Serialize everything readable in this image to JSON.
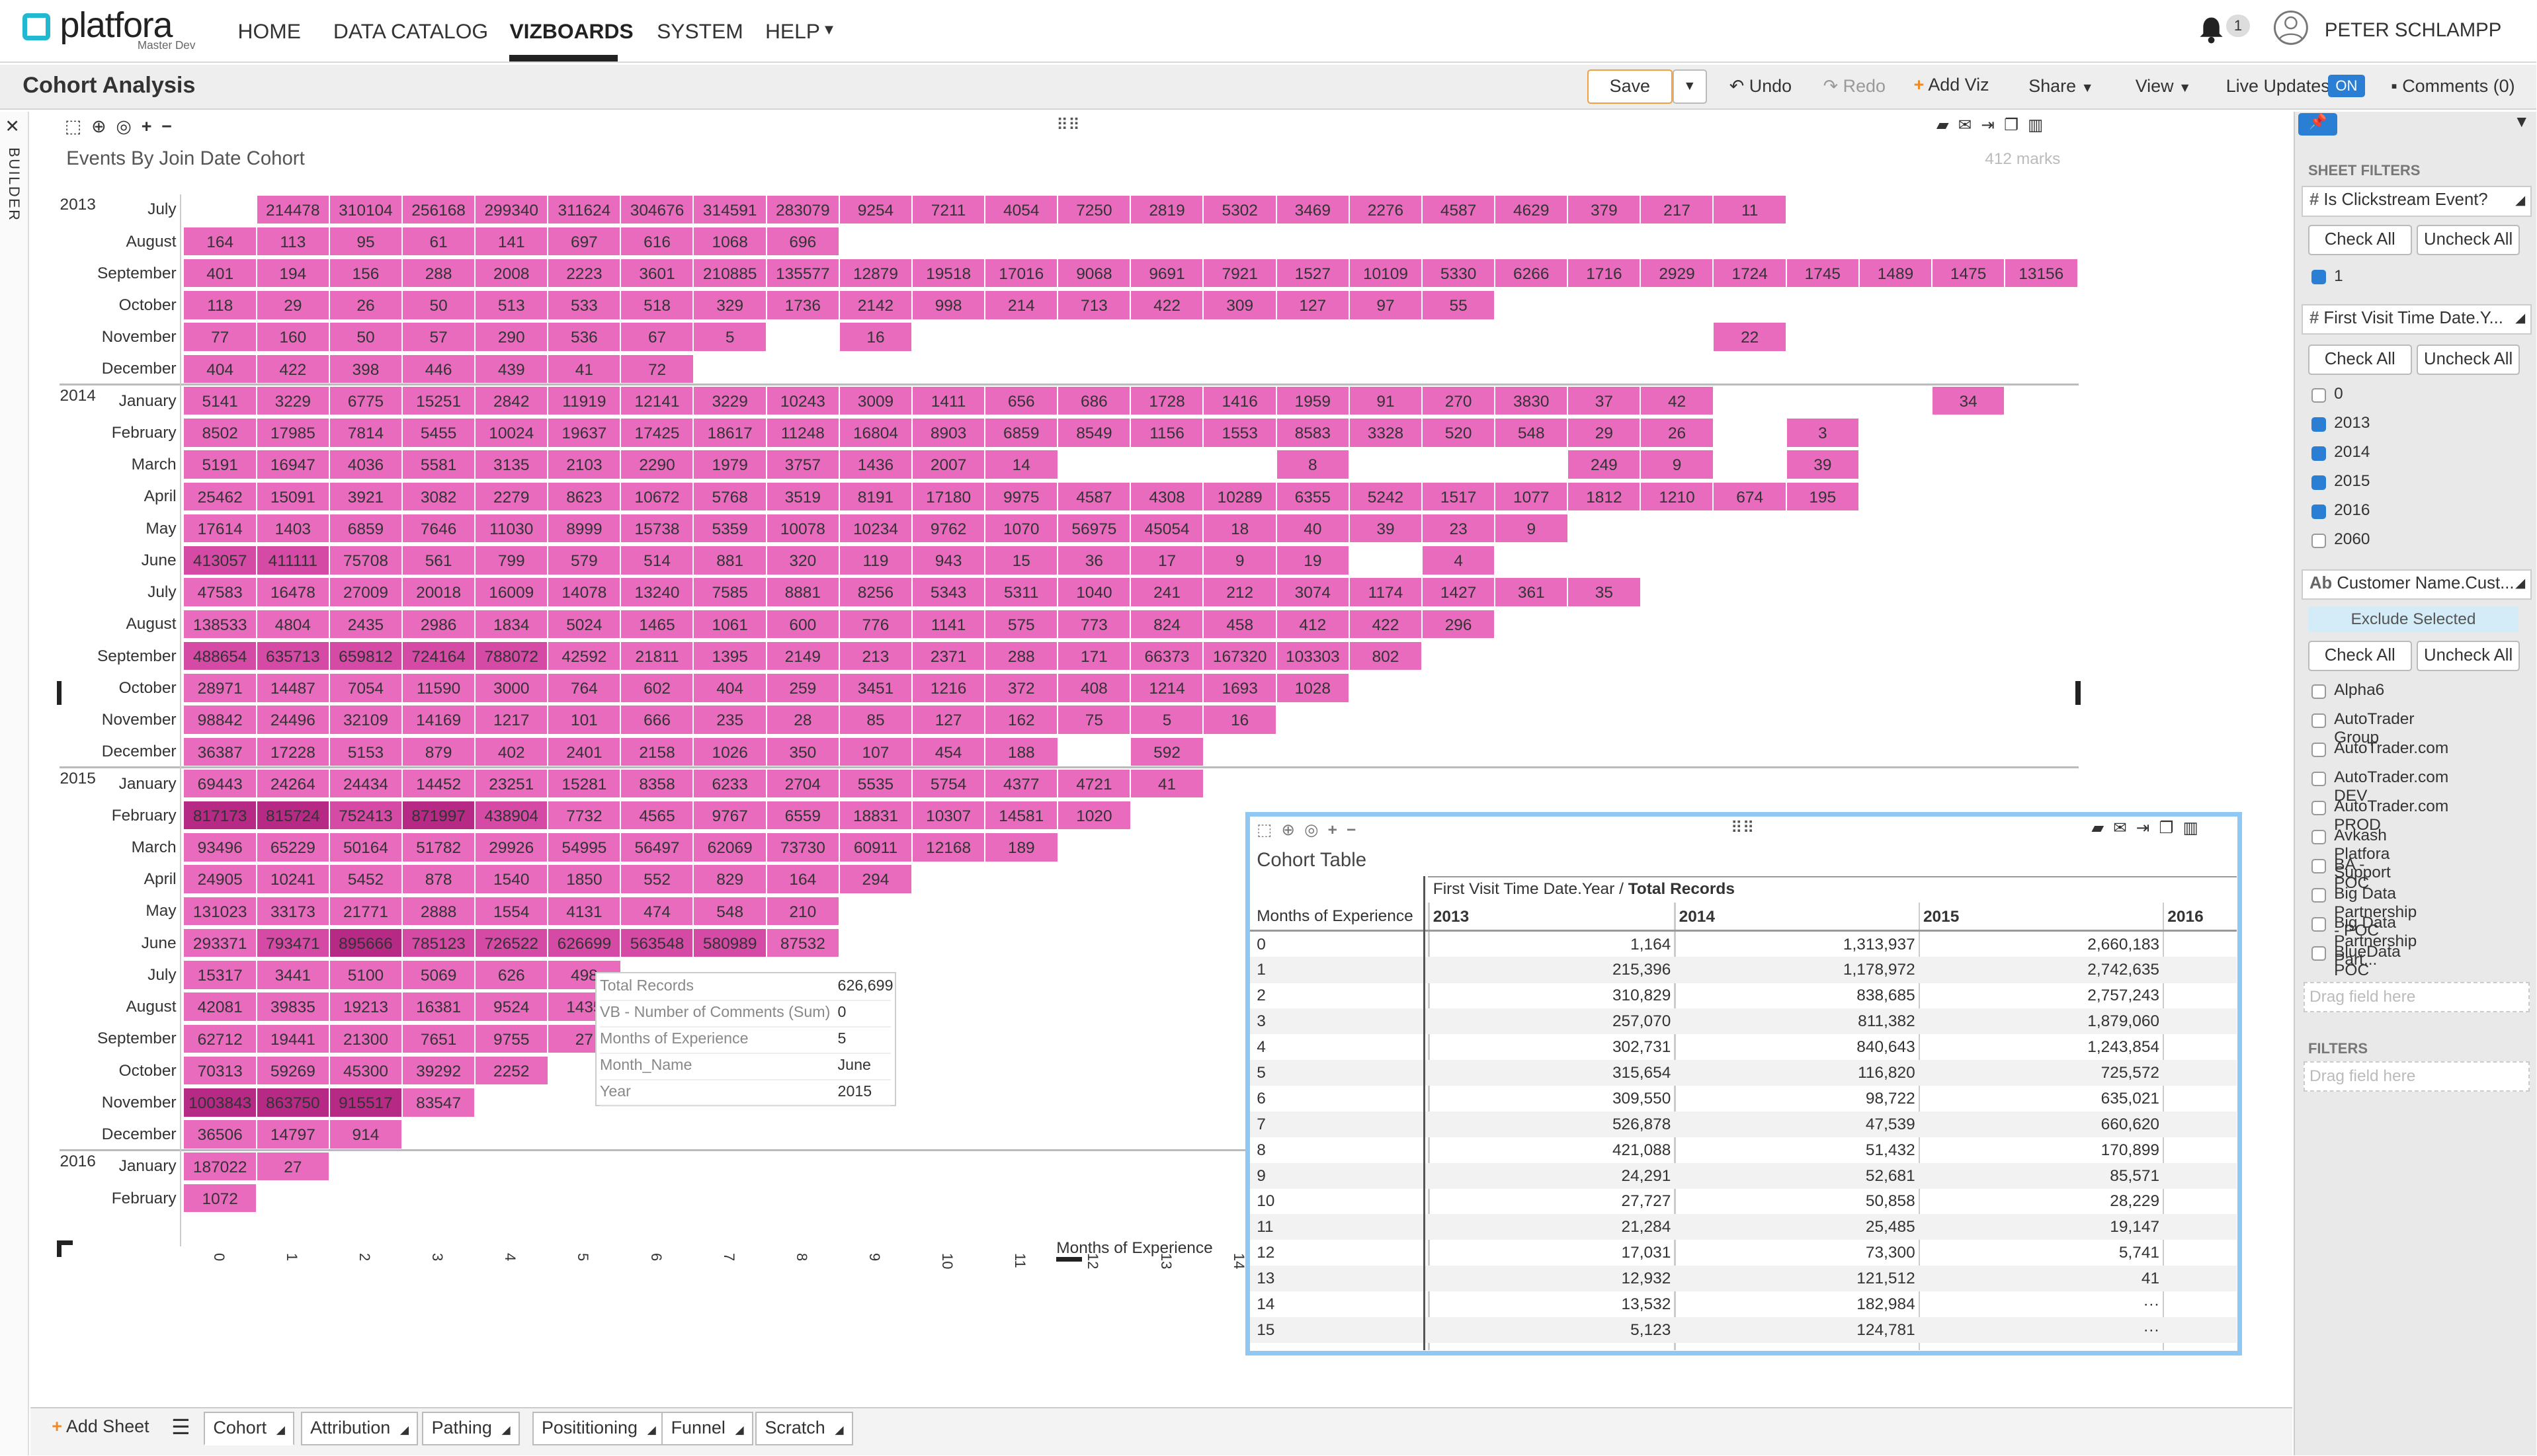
{
  "app": {
    "logo": "platfora",
    "logo_sub": "Master Dev",
    "colors": {
      "brand": "#22b8cf",
      "cell_light": "#e96bbe",
      "cell_mid": "#d44aa5",
      "cell_dark": "#b62a86",
      "selection": "#8fc8f2"
    }
  },
  "nav": {
    "items": [
      "HOME",
      "DATA CATALOG",
      "VIZBOARDS",
      "SYSTEM",
      "HELP"
    ],
    "active": "VIZBOARDS",
    "notifications": "1",
    "user": "PETER SCHLAMPP"
  },
  "header": {
    "title": "Cohort Analysis",
    "save": "Save",
    "undo": "Undo",
    "redo": "Redo",
    "add_viz": "Add Viz",
    "share": "Share",
    "view": "View",
    "live_updates": "Live Updates",
    "live_state": "ON",
    "comments": "Comments (0)"
  },
  "left_rail": {
    "label": "BUILDER"
  },
  "heatmap": {
    "title": "Events By Join Date Cohort",
    "marks": "412 marks",
    "xlabel": "Months of Experience",
    "xticks": [
      "0",
      "1",
      "2",
      "3",
      "4",
      "5",
      "6",
      "7",
      "8",
      "9",
      "10",
      "11",
      "12",
      "13",
      "14"
    ],
    "years": [
      "2013",
      "2014",
      "2015",
      "2016"
    ],
    "rows": [
      {
        "month": "July",
        "start": 1,
        "v": [
          "214478",
          "310104",
          "256168",
          "299340",
          "311624",
          "304676",
          "314591",
          "283079",
          "9254",
          "7211",
          "4054",
          "7250",
          "2819",
          "5302",
          "3469",
          "2276",
          "4587",
          "4629",
          "379",
          "217",
          "11"
        ]
      },
      {
        "month": "August",
        "start": 0,
        "v": [
          "164",
          "113",
          "95",
          "61",
          "141",
          "697",
          "616",
          "1068",
          "696"
        ]
      },
      {
        "month": "September",
        "start": 0,
        "v": [
          "401",
          "194",
          "156",
          "288",
          "2008",
          "2223",
          "3601",
          "210885",
          "135577",
          "12879",
          "19518",
          "17016",
          "9068",
          "9691",
          "7921",
          "1527",
          "10109",
          "5330",
          "6266",
          "1716",
          "2929",
          "1724",
          "1745",
          "1489",
          "1475",
          "13156"
        ]
      },
      {
        "month": "October",
        "start": 0,
        "v": [
          "118",
          "29",
          "26",
          "50",
          "513",
          "533",
          "518",
          "329",
          "1736",
          "2142",
          "998",
          "214",
          "713",
          "422",
          "309",
          "127",
          "97",
          "55"
        ]
      },
      {
        "month": "November",
        "start": 0,
        "v": [
          "77",
          "160",
          "50",
          "57",
          "290",
          "536",
          "67",
          "5",
          "",
          "16",
          "",
          "",
          "",
          "",
          "",
          "",
          "",
          "",
          "",
          "",
          "",
          "22"
        ]
      },
      {
        "month": "December",
        "start": 0,
        "v": [
          "404",
          "422",
          "398",
          "446",
          "439",
          "41",
          "72"
        ]
      },
      {
        "month": "January",
        "start": 0,
        "v": [
          "5141",
          "3229",
          "6775",
          "15251",
          "2842",
          "11919",
          "12141",
          "3229",
          "10243",
          "3009",
          "1411",
          "656",
          "686",
          "1728",
          "1416",
          "1959",
          "91",
          "270",
          "3830",
          "37",
          "42",
          "",
          "",
          "",
          "34"
        ]
      },
      {
        "month": "February",
        "start": 0,
        "v": [
          "8502",
          "17985",
          "7814",
          "5455",
          "10024",
          "19637",
          "17425",
          "18617",
          "11248",
          "16804",
          "8903",
          "6859",
          "8549",
          "1156",
          "1553",
          "8583",
          "3328",
          "520",
          "548",
          "29",
          "26",
          "",
          "3"
        ]
      },
      {
        "month": "March",
        "start": 0,
        "v": [
          "5191",
          "16947",
          "4036",
          "5581",
          "3135",
          "2103",
          "2290",
          "1979",
          "3757",
          "1436",
          "2007",
          "14",
          "",
          "",
          "",
          "8",
          "",
          "",
          "",
          "249",
          "9",
          "",
          "39"
        ]
      },
      {
        "month": "April",
        "start": 0,
        "v": [
          "25462",
          "15091",
          "3921",
          "3082",
          "2279",
          "8623",
          "10672",
          "5768",
          "3519",
          "8191",
          "17180",
          "9975",
          "4587",
          "4308",
          "10289",
          "6355",
          "5242",
          "1517",
          "1077",
          "1812",
          "1210",
          "674",
          "195"
        ]
      },
      {
        "month": "May",
        "start": 0,
        "v": [
          "17614",
          "1403",
          "6859",
          "7646",
          "11030",
          "8999",
          "15738",
          "5359",
          "10078",
          "10234",
          "9762",
          "1070",
          "56975",
          "45054",
          "18",
          "40",
          "39",
          "23",
          "9"
        ]
      },
      {
        "month": "June",
        "start": 0,
        "v": [
          "413057",
          "411111",
          "75708",
          "561",
          "799",
          "579",
          "514",
          "881",
          "320",
          "119",
          "943",
          "15",
          "36",
          "17",
          "9",
          "19",
          "",
          "4"
        ]
      },
      {
        "month": "July",
        "start": 0,
        "v": [
          "47583",
          "16478",
          "27009",
          "20018",
          "16009",
          "14078",
          "13240",
          "7585",
          "8881",
          "8256",
          "5343",
          "5311",
          "1040",
          "241",
          "212",
          "3074",
          "1174",
          "1427",
          "361",
          "35"
        ]
      },
      {
        "month": "August",
        "start": 0,
        "v": [
          "138533",
          "4804",
          "2435",
          "2986",
          "1834",
          "5024",
          "1465",
          "1061",
          "600",
          "776",
          "1141",
          "575",
          "773",
          "824",
          "458",
          "412",
          "422",
          "296"
        ]
      },
      {
        "month": "September",
        "start": 0,
        "v": [
          "488654",
          "635713",
          "659812",
          "724164",
          "788072",
          "42592",
          "21811",
          "1395",
          "2149",
          "213",
          "2371",
          "288",
          "171",
          "66373",
          "167320",
          "103303",
          "802"
        ]
      },
      {
        "month": "October",
        "start": 0,
        "v": [
          "28971",
          "14487",
          "7054",
          "11590",
          "3000",
          "764",
          "602",
          "404",
          "259",
          "3451",
          "1216",
          "372",
          "408",
          "1214",
          "1693",
          "1028"
        ]
      },
      {
        "month": "November",
        "start": 0,
        "v": [
          "98842",
          "24496",
          "32109",
          "14169",
          "1217",
          "101",
          "666",
          "235",
          "28",
          "85",
          "127",
          "162",
          "75",
          "5",
          "16"
        ]
      },
      {
        "month": "December",
        "start": 0,
        "v": [
          "36387",
          "17228",
          "5153",
          "879",
          "402",
          "2401",
          "2158",
          "1026",
          "350",
          "107",
          "454",
          "188",
          "",
          "592"
        ]
      },
      {
        "month": "January",
        "start": 0,
        "v": [
          "69443",
          "24264",
          "24434",
          "14452",
          "23251",
          "15281",
          "8358",
          "6233",
          "2704",
          "5535",
          "5754",
          "4377",
          "4721",
          "41"
        ]
      },
      {
        "month": "February",
        "start": 0,
        "v": [
          "817173",
          "815724",
          "752413",
          "871997",
          "438904",
          "7732",
          "4565",
          "9767",
          "6559",
          "18831",
          "10307",
          "14581",
          "1020"
        ]
      },
      {
        "month": "March",
        "start": 0,
        "v": [
          "93496",
          "65229",
          "50164",
          "51782",
          "29926",
          "54995",
          "56497",
          "62069",
          "73730",
          "60911",
          "12168",
          "189"
        ]
      },
      {
        "month": "April",
        "start": 0,
        "v": [
          "24905",
          "10241",
          "5452",
          "878",
          "1540",
          "1850",
          "552",
          "829",
          "164",
          "294"
        ]
      },
      {
        "month": "May",
        "start": 0,
        "v": [
          "131023",
          "33173",
          "21771",
          "2888",
          "1554",
          "4131",
          "474",
          "548",
          "210"
        ]
      },
      {
        "month": "June",
        "start": 0,
        "v": [
          "293371",
          "793471",
          "895666",
          "785123",
          "726522",
          "626699",
          "563548",
          "580989",
          "87532"
        ]
      },
      {
        "month": "July",
        "start": 0,
        "v": [
          "15317",
          "3441",
          "5100",
          "5069",
          "626",
          "498",
          "",
          ""
        ]
      },
      {
        "month": "August",
        "start": 0,
        "v": [
          "42081",
          "39835",
          "19213",
          "16381",
          "9524",
          "1435"
        ]
      },
      {
        "month": "September",
        "start": 0,
        "v": [
          "62712",
          "19441",
          "21300",
          "7651",
          "9755",
          "27"
        ]
      },
      {
        "month": "October",
        "start": 0,
        "v": [
          "70313",
          "59269",
          "45300",
          "39292",
          "2252"
        ]
      },
      {
        "month": "November",
        "start": 0,
        "v": [
          "1003843",
          "863750",
          "915517",
          "83547"
        ]
      },
      {
        "month": "December",
        "start": 0,
        "v": [
          "36506",
          "14797",
          "914"
        ]
      },
      {
        "month": "January",
        "start": 0,
        "v": [
          "187022",
          "27"
        ]
      },
      {
        "month": "February",
        "start": 0,
        "v": [
          "1072"
        ]
      }
    ]
  },
  "tooltip": {
    "rows": [
      [
        "Total Records",
        "626,699"
      ],
      [
        "VB - Number of Comments (Sum)",
        "0"
      ],
      [
        "Months of Experience",
        "5"
      ],
      [
        "Month_Name",
        "June"
      ],
      [
        "Year",
        "2015"
      ]
    ]
  },
  "table": {
    "title": "Cohort Table",
    "header": "First Visit Time Date.Year / ",
    "header_bold": "Total Records",
    "row_header": "Months of Experience",
    "cols": [
      "2013",
      "2014",
      "2015",
      "2016"
    ],
    "rows": [
      [
        "0",
        "1,164",
        "1,313,937",
        "2,660,183"
      ],
      [
        "1",
        "215,396",
        "1,178,972",
        "2,742,635"
      ],
      [
        "2",
        "310,829",
        "838,685",
        "2,757,243"
      ],
      [
        "3",
        "257,070",
        "811,382",
        "1,879,060"
      ],
      [
        "4",
        "302,731",
        "840,643",
        "1,243,854"
      ],
      [
        "5",
        "315,654",
        "116,820",
        "725,572"
      ],
      [
        "6",
        "309,550",
        "98,722",
        "635,021"
      ],
      [
        "7",
        "526,878",
        "47,539",
        "660,620"
      ],
      [
        "8",
        "421,088",
        "51,432",
        "170,899"
      ],
      [
        "9",
        "24,291",
        "52,681",
        "85,571"
      ],
      [
        "10",
        "27,727",
        "50,858",
        "28,229"
      ],
      [
        "11",
        "21,284",
        "25,485",
        "19,147"
      ],
      [
        "12",
        "17,031",
        "73,300",
        "5,741"
      ],
      [
        "13",
        "12,932",
        "121,512",
        "41"
      ],
      [
        "14",
        "13,532",
        "182,984",
        "···"
      ],
      [
        "15",
        "5,123",
        "124,781",
        "···"
      ]
    ]
  },
  "right_panel": {
    "sheet_filters": "SHEET FILTERS",
    "filters": "FILTERS",
    "check_all": "Check All",
    "uncheck_all": "Uncheck All",
    "drag": "Drag field here",
    "exclude": "Exclude Selected",
    "f1": {
      "title": "Is Clickstream Event?",
      "items": [
        {
          "label": "1",
          "on": true
        }
      ]
    },
    "f2": {
      "title": "First Visit Time Date.Y...",
      "items": [
        {
          "label": "0",
          "on": false
        },
        {
          "label": "2013",
          "on": true
        },
        {
          "label": "2014",
          "on": true
        },
        {
          "label": "2015",
          "on": true
        },
        {
          "label": "2016",
          "on": true
        },
        {
          "label": "2060",
          "on": false
        }
      ]
    },
    "f3": {
      "title": "Customer Name.Cust...",
      "items": [
        "Alpha6",
        "AutoTrader Group",
        "AutoTrader.com",
        "AutoTrader.com DEV",
        "AutoTrader.com PROD",
        "Avkash Platfora Support",
        "BA - POC",
        "Big Data Partnership - POC",
        "Big Data Partnership Part...",
        "BlueData POC"
      ]
    }
  },
  "bottom": {
    "add_sheet": "Add Sheet",
    "tabs": [
      "Cohort",
      "Attribution",
      "Pathing",
      "Posititioning",
      "Funnel",
      "Scratch"
    ],
    "active": "Cohort"
  }
}
